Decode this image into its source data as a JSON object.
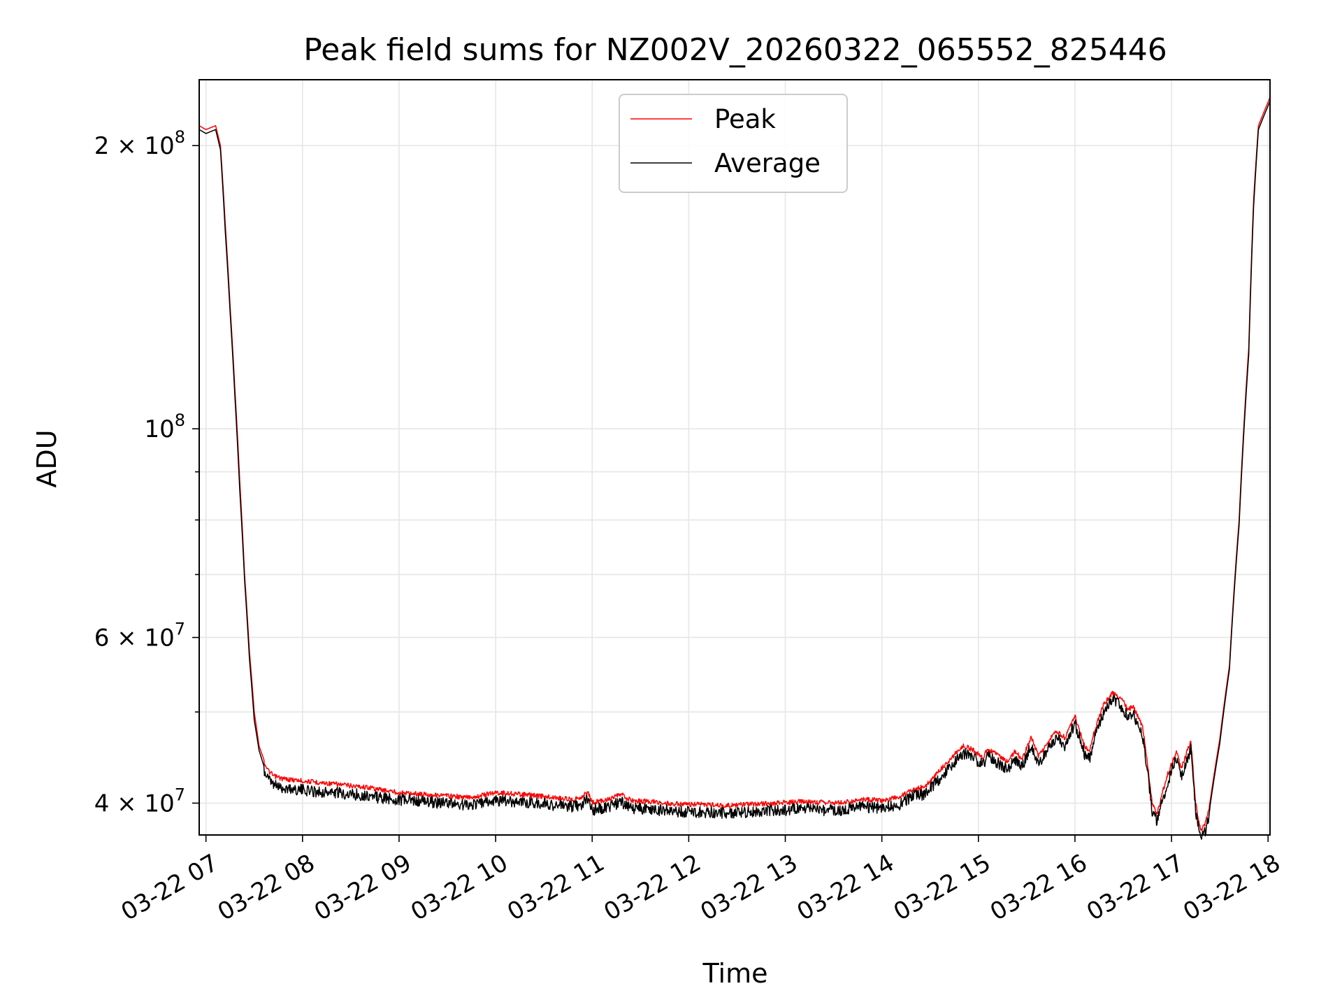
{
  "chart_data": {
    "type": "line",
    "title": "Peak field sums for NZ002V_20260322_065552_825446",
    "xlabel": "Time",
    "ylabel": "ADU",
    "yscale": "log",
    "ylim": [
      37000000,
      235000000
    ],
    "xlim": [
      6.93,
      18.02
    ],
    "grid": true,
    "legend_location": "upper center",
    "colors": {
      "peak": "#ff0000",
      "average": "#000000",
      "grid": "#e6e6e6"
    },
    "x_ticks": [
      {
        "value": 7,
        "label": "03-22 07"
      },
      {
        "value": 8,
        "label": "03-22 08"
      },
      {
        "value": 9,
        "label": "03-22 09"
      },
      {
        "value": 10,
        "label": "03-22 10"
      },
      {
        "value": 11,
        "label": "03-22 11"
      },
      {
        "value": 12,
        "label": "03-22 12"
      },
      {
        "value": 13,
        "label": "03-22 13"
      },
      {
        "value": 14,
        "label": "03-22 14"
      },
      {
        "value": 15,
        "label": "03-22 15"
      },
      {
        "value": 16,
        "label": "03-22 16"
      },
      {
        "value": 17,
        "label": "03-22 17"
      },
      {
        "value": 18,
        "label": "03-22 18"
      }
    ],
    "y_major_ticks": [
      {
        "value": 40000000,
        "mantissa": "4 × 10",
        "exponent": "7"
      },
      {
        "value": 60000000,
        "mantissa": "6 × 10",
        "exponent": "7"
      },
      {
        "value": 100000000,
        "mantissa": "10",
        "exponent": "8"
      },
      {
        "value": 200000000,
        "mantissa": "2 × 10",
        "exponent": "8"
      }
    ],
    "y_minor_ticks": [
      50000000,
      70000000,
      80000000,
      90000000
    ],
    "x_hours": [
      6.93,
      7.0,
      7.1,
      7.15,
      7.2,
      7.25,
      7.3,
      7.35,
      7.4,
      7.45,
      7.5,
      7.55,
      7.6,
      7.65,
      7.7,
      7.8,
      7.9,
      8.0,
      8.2,
      8.5,
      8.7,
      8.8,
      9.0,
      9.3,
      9.6,
      9.65,
      9.8,
      10.0,
      10.3,
      10.6,
      10.8,
      10.9,
      10.95,
      11.0,
      11.1,
      11.2,
      11.3,
      11.4,
      11.6,
      11.8,
      12.0,
      12.2,
      12.4,
      12.6,
      12.8,
      13.0,
      13.2,
      13.4,
      13.6,
      13.8,
      14.0,
      14.2,
      14.3,
      14.45,
      14.6,
      14.75,
      14.85,
      14.95,
      15.05,
      15.1,
      15.2,
      15.3,
      15.38,
      15.45,
      15.55,
      15.62,
      15.7,
      15.8,
      15.9,
      16.0,
      16.1,
      16.15,
      16.2,
      16.3,
      16.4,
      16.5,
      16.55,
      16.6,
      16.7,
      16.8,
      16.85,
      16.95,
      17.05,
      17.1,
      17.2,
      17.25,
      17.3,
      17.35,
      17.4,
      17.5,
      17.6,
      17.7,
      17.8,
      17.85,
      17.9,
      18.02
    ],
    "series": [
      {
        "name": "Peak",
        "values": [
          210000000,
          208000000,
          210000000,
          200000000,
          165000000,
          135000000,
          110000000,
          88000000,
          70000000,
          58000000,
          50000000,
          46000000,
          44500000,
          43500000,
          43000000,
          42700000,
          42600000,
          42500000,
          42300000,
          42000000,
          41800000,
          41600000,
          41300000,
          41100000,
          40900000,
          40800000,
          40900000,
          41300000,
          41100000,
          40800000,
          40600000,
          40900000,
          41400000,
          40300000,
          40500000,
          40700000,
          41100000,
          40500000,
          40400000,
          40200000,
          40100000,
          40100000,
          40000000,
          40100000,
          40200000,
          40300000,
          40400000,
          40300000,
          40300000,
          40600000,
          40500000,
          40900000,
          41600000,
          41900000,
          43600000,
          45300000,
          46300000,
          45800000,
          45000000,
          46000000,
          45300000,
          44600000,
          45700000,
          44800000,
          47300000,
          45200000,
          46300000,
          48100000,
          47200000,
          49800000,
          46200000,
          45700000,
          47900000,
          51300000,
          52800000,
          51600000,
          50500000,
          51000000,
          48500000,
          40200000,
          39200000,
          42900000,
          45700000,
          43800000,
          46800000,
          40200000,
          37700000,
          38200000,
          40200000,
          46800000,
          56000000,
          80000000,
          122000000,
          175000000,
          210000000,
          225000000
        ]
      },
      {
        "name": "Average",
        "values": [
          208000000,
          206000000,
          208000000,
          198000000,
          162000000,
          133000000,
          108000000,
          86000000,
          69000000,
          57000000,
          49000000,
          45500000,
          43800000,
          42900000,
          42400000,
          42100000,
          42000000,
          41900000,
          41700000,
          41500000,
          41300000,
          41100000,
          40900000,
          40700000,
          40500000,
          40400000,
          40500000,
          40800000,
          40700000,
          40400000,
          40200000,
          40500000,
          41000000,
          39900000,
          40100000,
          40300000,
          40700000,
          40100000,
          40000000,
          39800000,
          39700000,
          39700000,
          39600000,
          39700000,
          39800000,
          39900000,
          40000000,
          39900000,
          39900000,
          40200000,
          40100000,
          40500000,
          41200000,
          41500000,
          43100000,
          44800000,
          45800000,
          45300000,
          44500000,
          45500000,
          44800000,
          44100000,
          45200000,
          44300000,
          46800000,
          44700000,
          45800000,
          47600000,
          46700000,
          49300000,
          45700000,
          45200000,
          47400000,
          50800000,
          52300000,
          51100000,
          50000000,
          50500000,
          48000000,
          39800000,
          38800000,
          42400000,
          45200000,
          43300000,
          46300000,
          39800000,
          37300000,
          37800000,
          39800000,
          46300000,
          55500000,
          79000000,
          120000000,
          172000000,
          208000000,
          223000000
        ]
      }
    ]
  }
}
